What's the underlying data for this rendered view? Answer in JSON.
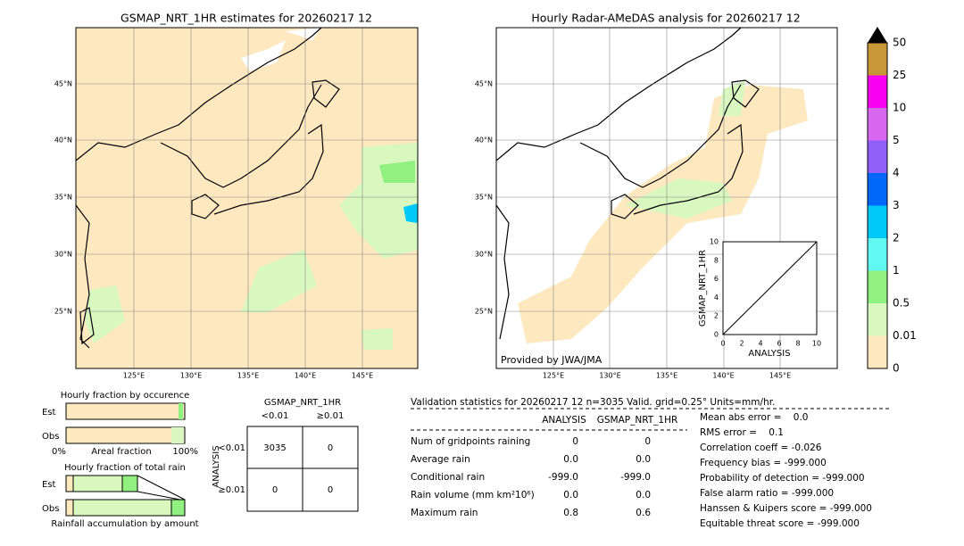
{
  "left_map": {
    "title": "GSMAP_NRT_1HR estimates for 20260217 12",
    "lat_labels": [
      "45°N",
      "40°N",
      "35°N",
      "30°N",
      "25°N"
    ],
    "lon_labels": [
      "125°E",
      "130°E",
      "135°E",
      "140°E",
      "145°E"
    ]
  },
  "right_map": {
    "title": "Hourly Radar-AMeDAS analysis for 20260217 12",
    "lat_labels": [
      "45°N",
      "40°N",
      "35°N",
      "30°N",
      "25°N"
    ],
    "lon_labels": [
      "125°E",
      "130°E",
      "135°E",
      "140°E",
      "145°E"
    ],
    "credit": "Provided by JWA/JMA",
    "inset": {
      "xlabel": "ANALYSIS",
      "ylabel": "GSMAP_NRT_1HR",
      "xticks": [
        "0",
        "2",
        "4",
        "6",
        "8",
        "10"
      ],
      "yticks": [
        "0",
        "2",
        "4",
        "6",
        "8",
        "10"
      ]
    }
  },
  "colorbar": {
    "levels": [
      "0",
      "0.01",
      "0.5",
      "1",
      "2",
      "3",
      "4",
      "5",
      "10",
      "25",
      "50"
    ],
    "colors": [
      "#fde8c0",
      "#d8f8c0",
      "#90f080",
      "#60f8f0",
      "#00c8f8",
      "#0068f8",
      "#9060f8",
      "#d868f0",
      "#f800f0",
      "#c89838"
    ]
  },
  "occurrence": {
    "title": "Hourly fraction by occurence",
    "rows": [
      "Est",
      "Obs"
    ],
    "axis_left": "0%",
    "axis_mid": "Areal fraction",
    "axis_right": "100%"
  },
  "total_rain": {
    "title": "Hourly fraction of total rain",
    "rows": [
      "Est",
      "Obs"
    ],
    "footer": "Rainfall accumulation by amount"
  },
  "contingency": {
    "title": "GSMAP_NRT_1HR",
    "col_headers": [
      "<0.01",
      "≥0.01"
    ],
    "row_axis": "ANALYSIS",
    "row_headers": [
      "<0.01",
      "≥0.01"
    ],
    "cells": [
      [
        "3035",
        "0"
      ],
      [
        "0",
        "0"
      ]
    ]
  },
  "validation": {
    "header": "Validation statistics for 20260217 12  n=3035 Valid. grid=0.25° Units=mm/hr.",
    "columns": [
      "ANALYSIS",
      "GSMAP_NRT_1HR"
    ],
    "rows": [
      [
        "Num of gridpoints raining",
        "0",
        "0"
      ],
      [
        "Average rain",
        "0.0",
        "0.0"
      ],
      [
        "Conditional rain",
        "-999.0",
        "-999.0"
      ],
      [
        "Rain volume (mm km²10⁶)",
        "0.0",
        "0.0"
      ],
      [
        "Maximum rain",
        "0.8",
        "0.6"
      ]
    ],
    "scores": [
      "Mean abs error =    0.0",
      "RMS error =    0.1",
      "Correlation coeff = -0.026",
      "Frequency bias = -999.000",
      "Probability of detection = -999.000",
      "False alarm ratio = -999.000",
      "Hanssen & Kuipers score = -999.000",
      "Equitable threat score = -999.000"
    ]
  }
}
